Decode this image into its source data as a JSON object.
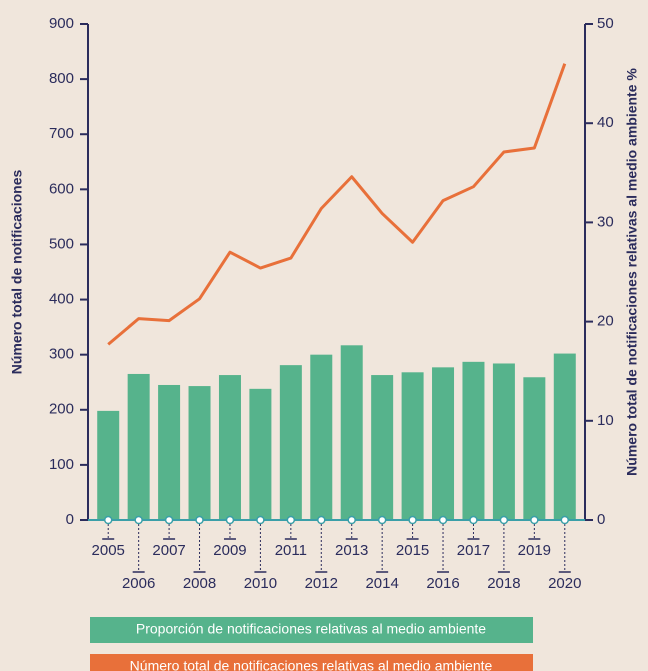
{
  "chart_data": {
    "type": "bar",
    "categories": [
      "2005",
      "2006",
      "2007",
      "2008",
      "2009",
      "2010",
      "2011",
      "2012",
      "2013",
      "2014",
      "2015",
      "2016",
      "2017",
      "2018",
      "2019",
      "2020"
    ],
    "series": [
      {
        "name": "Proporción de notificaciones relativas al medio ambiente",
        "color": "#56b38c",
        "type": "bar",
        "values": [
          198,
          265,
          245,
          243,
          263,
          238,
          281,
          300,
          317,
          263,
          268,
          277,
          287,
          284,
          259,
          302
        ]
      },
      {
        "name": "Número total de notificaciones relativas al medio ambiente",
        "color": "#e8703a",
        "type": "line",
        "axis": "y2",
        "values": [
          17.7,
          20.3,
          20.1,
          22.3,
          27.0,
          25.4,
          26.4,
          31.4,
          34.6,
          30.9,
          28.0,
          32.2,
          33.6,
          37.1,
          37.5,
          46.0
        ]
      }
    ],
    "ylabel": "Número total de notificaciones",
    "y2label": "Número total de notificaciones relativas al medio ambiente %",
    "ylim": [
      0,
      900
    ],
    "yticks": [
      0,
      100,
      200,
      300,
      400,
      500,
      600,
      700,
      800,
      900
    ],
    "y2lim": [
      0,
      50
    ],
    "y2ticks": [
      0,
      10,
      20,
      30,
      40,
      50
    ],
    "axis_color": "#2b2c5c",
    "background": "#f0e6dc"
  }
}
